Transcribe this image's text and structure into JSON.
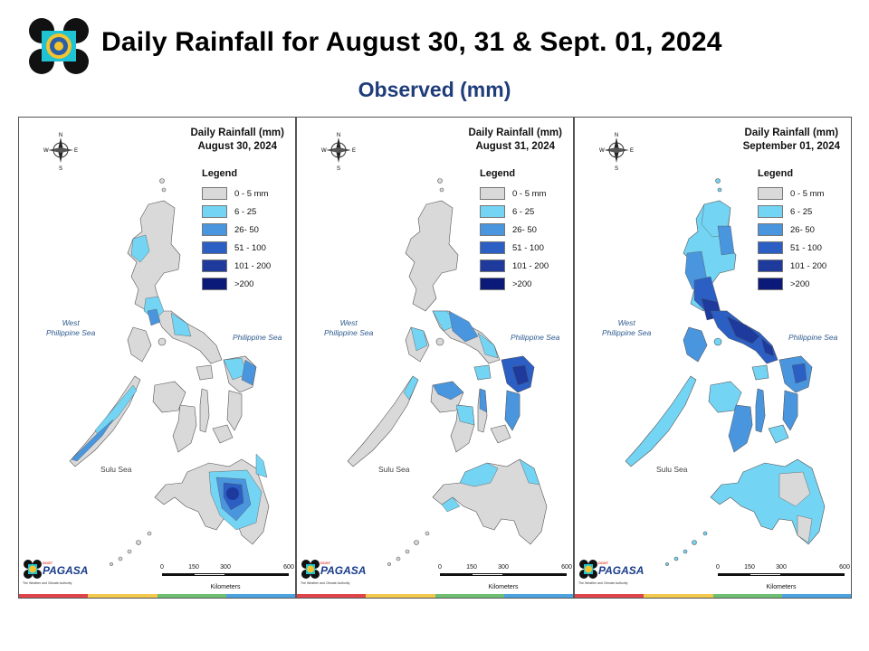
{
  "header": {
    "title": "Daily Rainfall for August 30, 31 & Sept. 01, 2024",
    "subtitle": "Observed (mm)"
  },
  "legend": {
    "title": "Legend",
    "items": [
      {
        "label": "0 - 5 mm",
        "color": "#d9d9d9"
      },
      {
        "label": "6 - 25",
        "color": "#74d4f4"
      },
      {
        "label": "26- 50",
        "color": "#4a96de"
      },
      {
        "label": "51 - 100",
        "color": "#2b5fc4"
      },
      {
        "label": "101 - 200",
        "color": "#1d3a9c"
      },
      {
        "label": ">200",
        "color": "#0b1a78"
      }
    ]
  },
  "panels": [
    {
      "heading": "Daily Rainfall (mm)",
      "date": "August 30, 2024"
    },
    {
      "heading": "Daily Rainfall (mm)",
      "date": "August 31, 2024"
    },
    {
      "heading": "Daily Rainfall (mm)",
      "date": "September 01, 2024"
    }
  ],
  "map_labels": {
    "west_sea": "West\nPhilippine Sea",
    "east_sea": "Philippine Sea",
    "sulu_sea": "Sulu Sea",
    "compass": {
      "n": "N",
      "s": "S",
      "e": "E",
      "w": "W"
    }
  },
  "scalebar": {
    "ticks": [
      "0",
      "150",
      "300",
      "600"
    ],
    "unit": "Kilometers"
  },
  "branding": {
    "agency": "PAGASA",
    "dost": "DOST",
    "tagline": "The Weather and Climate Authority"
  },
  "colors": {
    "land": "#d9d9d9",
    "stripe": [
      "#e0444b",
      "#f2c94c",
      "#6fbf73",
      "#4aa3df"
    ]
  }
}
